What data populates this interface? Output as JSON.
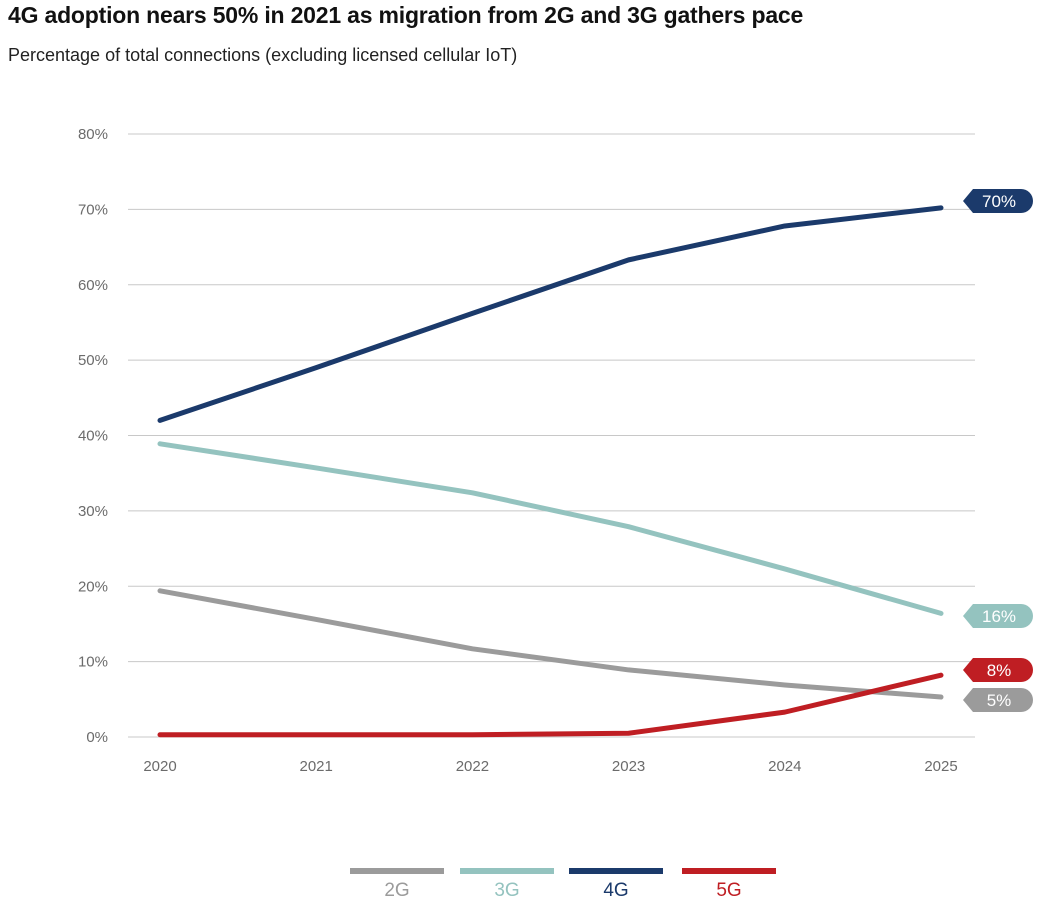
{
  "title": "4G adoption nears 50% in 2021 as migration from 2G and 3G gathers pace",
  "subtitle": "Percentage of total connections (excluding licensed cellular IoT)",
  "chart_data": {
    "type": "line",
    "title": "4G adoption nears 50% in 2021 as migration from 2G and 3G gathers pace",
    "subtitle": "Percentage of total connections (excluding licensed cellular IoT)",
    "xlabel": "",
    "ylabel": "",
    "x": [
      "2020",
      "2021",
      "2022",
      "2023",
      "2024",
      "2025"
    ],
    "ylim": [
      0,
      80
    ],
    "yticks": [
      0,
      10,
      20,
      30,
      40,
      50,
      60,
      70,
      80
    ],
    "ytick_labels": [
      "0%",
      "10%",
      "20%",
      "30%",
      "40%",
      "50%",
      "60%",
      "70%",
      "80%"
    ],
    "grid": true,
    "legend_position": "bottom-center",
    "series": [
      {
        "name": "2G",
        "color": "#9b9b9b",
        "values": [
          19.4,
          15.6,
          11.7,
          8.9,
          6.9,
          5.3
        ],
        "end_label": "5%"
      },
      {
        "name": "3G",
        "color": "#94c3bf",
        "values": [
          38.9,
          35.7,
          32.4,
          27.9,
          22.3,
          16.4
        ],
        "end_label": "16%"
      },
      {
        "name": "4G",
        "color": "#1b3a6b",
        "values": [
          42.0,
          49.0,
          56.2,
          63.3,
          67.8,
          70.2
        ],
        "end_label": "70%"
      },
      {
        "name": "5G",
        "color": "#bf1e23",
        "values": [
          0.3,
          0.3,
          0.3,
          0.5,
          3.3,
          8.2
        ],
        "end_label": "8%"
      }
    ]
  }
}
